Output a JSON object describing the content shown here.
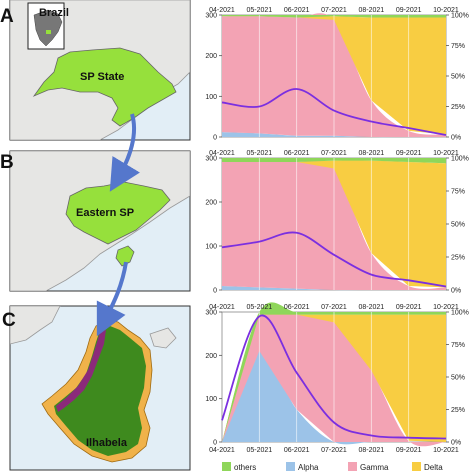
{
  "figure": {
    "panel_labels": [
      "A",
      "B",
      "C"
    ],
    "map_labels": {
      "inset": "Brazil",
      "a": "SP State",
      "b": "Eastern SP",
      "c": "Ilhabela"
    }
  },
  "colors": {
    "others": "#8fd65a",
    "alpha": "#9cc3e8",
    "gamma": "#f3a3b4",
    "delta": "#f8cd42",
    "line": "#7b2fe0",
    "state_green": "#96e03c",
    "ilhabela_green": "#3e8a1e",
    "ocean": "#e2eef6",
    "land": "#e6e6e4",
    "arrow": "#5577cc"
  },
  "legend": [
    {
      "label": "others",
      "color": "#8fd65a"
    },
    {
      "label": "Alpha",
      "color": "#9cc3e8"
    },
    {
      "label": "Gamma",
      "color": "#f3a3b4"
    },
    {
      "label": "Delta",
      "color": "#f8cd42"
    }
  ],
  "chart_data": [
    {
      "type": "area",
      "stacked_percent": true,
      "x": [
        "04-2021",
        "05-2021",
        "06-2021",
        "07-2021",
        "08-2021",
        "09-2021",
        "10-2021"
      ],
      "left_axis": {
        "ticks": [
          0,
          100,
          200,
          300
        ]
      },
      "right_axis": {
        "ticks": [
          "0%",
          "25%",
          "50%",
          "75%",
          "100%"
        ]
      },
      "series": [
        {
          "name": "Alpha",
          "values": [
            4,
            3,
            1,
            1,
            0,
            0,
            0
          ]
        },
        {
          "name": "Gamma",
          "values": [
            95,
            96,
            97,
            95,
            30,
            5,
            2
          ]
        },
        {
          "name": "Delta",
          "values": [
            0,
            0,
            0,
            3,
            68,
            93,
            96
          ]
        },
        {
          "name": "others",
          "values": [
            1,
            1,
            2,
            1,
            2,
            2,
            2
          ]
        }
      ],
      "line": {
        "x": [
          "04-2021",
          "05-2021",
          "06-2021",
          "07-2021",
          "08-2021",
          "09-2021",
          "10-2021"
        ],
        "values": [
          85,
          75,
          118,
          65,
          38,
          22,
          5
        ]
      }
    },
    {
      "type": "area",
      "stacked_percent": true,
      "x": [
        "04-2021",
        "05-2021",
        "06-2021",
        "07-2021",
        "08-2021",
        "09-2021",
        "10-2021"
      ],
      "left_axis": {
        "ticks": [
          0,
          100,
          200,
          300
        ]
      },
      "right_axis": {
        "ticks": [
          "0%",
          "25%",
          "50%",
          "75%",
          "100%"
        ]
      },
      "series": [
        {
          "name": "Alpha",
          "values": [
            3,
            2,
            1,
            0,
            0,
            0,
            0
          ]
        },
        {
          "name": "Gamma",
          "values": [
            94,
            95,
            96,
            92,
            28,
            3,
            2
          ]
        },
        {
          "name": "Delta",
          "values": [
            0,
            0,
            0,
            6,
            70,
            94,
            94
          ]
        },
        {
          "name": "others",
          "values": [
            3,
            3,
            3,
            2,
            2,
            3,
            4
          ]
        }
      ],
      "line": {
        "x": [
          "04-2021",
          "05-2021",
          "06-2021",
          "07-2021",
          "08-2021",
          "09-2021",
          "10-2021"
        ],
        "values": [
          97,
          110,
          130,
          80,
          35,
          22,
          8
        ]
      }
    },
    {
      "type": "area",
      "stacked_percent": true,
      "x": [
        "04-2021",
        "05-2021",
        "06-2021",
        "07-2021",
        "08-2021",
        "09-2021",
        "10-2021"
      ],
      "left_axis": {
        "ticks": [
          0,
          100,
          200,
          300
        ]
      },
      "right_axis": {
        "ticks": [
          "0%",
          "25%",
          "50%",
          "75%",
          "100%"
        ]
      },
      "series": [
        {
          "name": "Alpha",
          "values": [
            0,
            70,
            25,
            0,
            0,
            0,
            0
          ]
        },
        {
          "name": "Gamma",
          "values": [
            0,
            28,
            73,
            92,
            55,
            1,
            0
          ]
        },
        {
          "name": "Delta",
          "values": [
            0,
            0,
            0,
            6,
            43,
            97,
            98
          ]
        },
        {
          "name": "others",
          "values": [
            0,
            2,
            2,
            2,
            2,
            2,
            2
          ]
        }
      ],
      "line": {
        "x": [
          "04-2021",
          "05-2021",
          "06-2021",
          "07-2021",
          "08-2021",
          "09-2021",
          "10-2021"
        ],
        "values": [
          50,
          290,
          160,
          45,
          15,
          10,
          8
        ]
      }
    }
  ]
}
